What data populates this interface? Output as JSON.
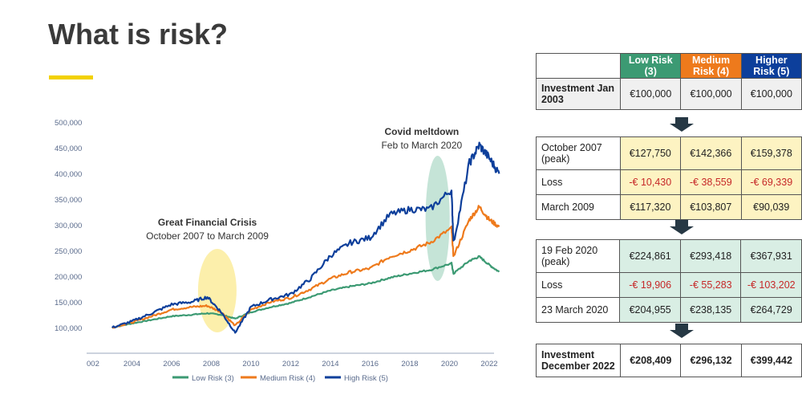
{
  "title": "What is risk?",
  "colors": {
    "accent_bar": "#f2d100",
    "low": "#3c9a73",
    "medium": "#ee7a1c",
    "high": "#0d3f9b",
    "arrow": "#263844"
  },
  "chart_data": {
    "type": "line",
    "yticks": [
      "500,000",
      "450,000",
      "400,000",
      "350,000",
      "300,000",
      "250,000",
      "200,000",
      "150,000",
      "100,000"
    ],
    "ytick_values": [
      500000,
      450000,
      400000,
      350000,
      300000,
      250000,
      200000,
      150000,
      100000
    ],
    "xticks": [
      "002",
      "2004",
      "2006",
      "2008",
      "2010",
      "2012",
      "2014",
      "2016",
      "2018",
      "2020",
      "2022"
    ],
    "xtick_values": [
      2002,
      2004,
      2006,
      2008,
      2010,
      2012,
      2014,
      2016,
      2018,
      2020,
      2022
    ],
    "xlim": [
      2002,
      2022
    ],
    "ylim": [
      50000,
      500000
    ],
    "annotations": [
      {
        "title": "Great Financial Crisis",
        "subtitle": "October 2007 to March 2009"
      },
      {
        "title": "Covid meltdown",
        "subtitle": "Feb to March 2020"
      }
    ],
    "series": [
      {
        "name": "Low Risk (3)",
        "x": [
          2003,
          2004,
          2005,
          2006,
          2007,
          2007.8,
          2008.5,
          2009.2,
          2010,
          2011,
          2012,
          2013,
          2014,
          2015,
          2016,
          2017,
          2018,
          2019,
          2020.1,
          2020.2,
          2021,
          2021.5,
          2022,
          2022.5
        ],
        "y": [
          100000,
          108000,
          115000,
          122000,
          125000,
          127750,
          125000,
          117320,
          130000,
          140000,
          148000,
          160000,
          172000,
          180000,
          186000,
          197000,
          205000,
          212000,
          224861,
          204955,
          230000,
          238000,
          222000,
          208409
        ]
      },
      {
        "name": "Medium Risk (4)",
        "x": [
          2003,
          2004,
          2005,
          2006,
          2007,
          2007.8,
          2008.5,
          2009.2,
          2010,
          2011,
          2012,
          2013,
          2014,
          2015,
          2016,
          2017,
          2018,
          2019,
          2020.1,
          2020.2,
          2021,
          2021.5,
          2022,
          2022.5
        ],
        "y": [
          100000,
          110000,
          122000,
          135000,
          140000,
          142366,
          130000,
          103807,
          135000,
          150000,
          158000,
          175000,
          195000,
          208000,
          215000,
          238000,
          250000,
          265000,
          293418,
          238135,
          310000,
          335000,
          310000,
          296132
        ]
      },
      {
        "name": "High Risk (5)",
        "x": [
          2003,
          2004,
          2005,
          2006,
          2007,
          2007.8,
          2008.5,
          2009.2,
          2010,
          2011,
          2012,
          2013,
          2014,
          2015,
          2016,
          2017,
          2018,
          2019,
          2020.1,
          2020.2,
          2021,
          2021.5,
          2022,
          2022.5
        ],
        "y": [
          100000,
          112000,
          128000,
          145000,
          150000,
          159378,
          130000,
          90039,
          140000,
          155000,
          165000,
          195000,
          240000,
          265000,
          275000,
          320000,
          330000,
          330000,
          367931,
          264729,
          420000,
          455000,
          430000,
          399442
        ]
      }
    ]
  },
  "table": {
    "headers": [
      "Low Risk (3)",
      "Medium Risk (4)",
      "Higher Risk (5)"
    ],
    "invest_start": {
      "label": "Investment Jan 2003",
      "values": [
        "€100,000",
        "€100,000",
        "€100,000"
      ]
    },
    "gfc": [
      {
        "label": "October 2007 (peak)",
        "values": [
          "€127,750",
          "€142,366",
          "€159,378"
        ]
      },
      {
        "label": "Loss",
        "values": [
          "-€ 10,430",
          "-€ 38,559",
          "-€ 69,339"
        ]
      },
      {
        "label": "March 2009",
        "values": [
          "€117,320",
          "€103,807",
          "€90,039"
        ]
      }
    ],
    "covid": [
      {
        "label": "19 Feb 2020 (peak)",
        "values": [
          "€224,861",
          "€293,418",
          "€367,931"
        ]
      },
      {
        "label": "Loss",
        "values": [
          "-€ 19,906",
          "-€ 55,283",
          "-€ 103,202"
        ]
      },
      {
        "label": "23 March 2020",
        "values": [
          "€204,955",
          "€238,135",
          "€264,729"
        ]
      }
    ],
    "invest_end": {
      "label": "Investment December 2022",
      "values": [
        "€208,409",
        "€296,132",
        "€399,442"
      ]
    }
  }
}
